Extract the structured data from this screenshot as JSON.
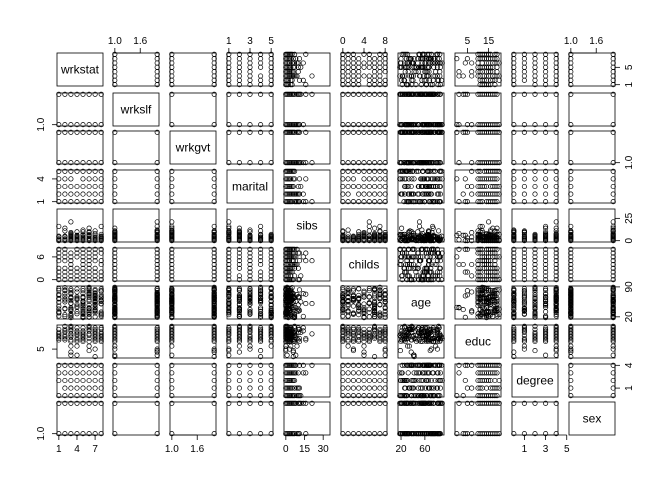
{
  "chart_data": {
    "type": "scatter",
    "subtype": "scatterplot-matrix",
    "title": "",
    "variables": [
      "wrkstat",
      "wrkslf",
      "wrkgvt",
      "marital",
      "sibs",
      "childs",
      "age",
      "educ",
      "degree",
      "sex"
    ],
    "ranges": {
      "wrkstat": [
        1,
        8
      ],
      "wrkslf": [
        1,
        2
      ],
      "wrkgvt": [
        1,
        2
      ],
      "marital": [
        1,
        5
      ],
      "sibs": [
        0,
        34
      ],
      "childs": [
        0,
        8
      ],
      "age": [
        18,
        89
      ],
      "educ": [
        0,
        20
      ],
      "degree": [
        0,
        4
      ],
      "sex": [
        1,
        2
      ]
    },
    "levels": {
      "wrkstat": [
        1,
        2,
        3,
        4,
        5,
        6,
        7,
        8
      ],
      "wrkslf": [
        1,
        2
      ],
      "wrkgvt": [
        1,
        2
      ],
      "marital": [
        1,
        2,
        3,
        4,
        5
      ],
      "childs": [
        0,
        1,
        2,
        3,
        4,
        5,
        6,
        7,
        8
      ],
      "degree": [
        0,
        1,
        2,
        3,
        4
      ],
      "sex": [
        1,
        2
      ]
    },
    "top_axis_ticks": {
      "wrkslf": [
        "1.0",
        "1.6"
      ],
      "marital": [
        "1",
        "3",
        "5"
      ],
      "childs": [
        "0",
        "4",
        "8"
      ],
      "educ": [
        "5",
        "15"
      ],
      "sex": [
        "1.0",
        "1.6"
      ]
    },
    "bottom_axis_ticks": {
      "wrkstat": [
        "1",
        "4",
        "7"
      ],
      "wrkgvt": [
        "1.0",
        "1.6"
      ],
      "sibs": [
        "0",
        "15",
        "30"
      ],
      "age": [
        "20",
        "60"
      ],
      "degree": [
        "1",
        "3",
        "5"
      ]
    },
    "left_axis_ticks": {
      "wrkslf": [
        "1.0"
      ],
      "marital": [
        "1",
        "4"
      ],
      "childs": [
        "0",
        "6"
      ],
      "educ": [
        "5"
      ],
      "sex": [
        "1.0"
      ]
    },
    "right_axis_ticks": {
      "wrkstat": [
        "1",
        "5"
      ],
      "wrkgvt": [
        "1.0"
      ],
      "sibs": [
        "0",
        "25"
      ],
      "age": [
        "20",
        "90"
      ],
      "degree": [
        "1",
        "4"
      ]
    },
    "grid": false,
    "legend": "none",
    "point_color": "#000000",
    "marker": "open-circle"
  }
}
